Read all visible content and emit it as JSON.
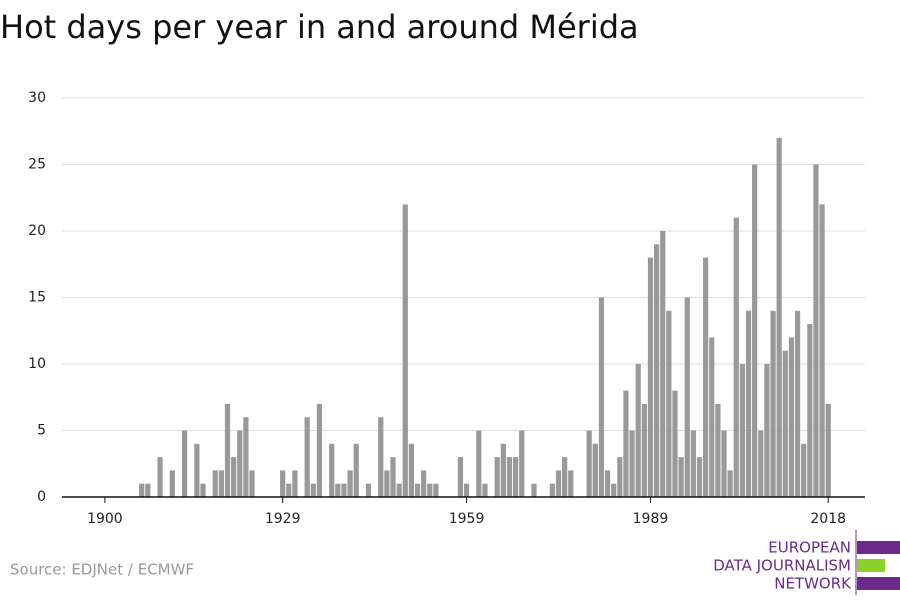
{
  "chart_data": {
    "type": "bar",
    "title": "Hot days per year in and around Mérida",
    "source": "Source: EDJNet / ECMWF",
    "logo": [
      "EUROPEAN",
      "DATA JOURNALISM",
      "NETWORK"
    ],
    "color": "#999999",
    "grid": true,
    "x": [
      1900,
      1901,
      1902,
      1903,
      1904,
      1905,
      1906,
      1907,
      1908,
      1909,
      1910,
      1911,
      1912,
      1913,
      1914,
      1915,
      1916,
      1917,
      1918,
      1919,
      1920,
      1921,
      1922,
      1923,
      1924,
      1925,
      1926,
      1927,
      1928,
      1929,
      1930,
      1931,
      1932,
      1933,
      1934,
      1935,
      1936,
      1937,
      1938,
      1939,
      1940,
      1941,
      1942,
      1943,
      1944,
      1945,
      1946,
      1947,
      1948,
      1949,
      1950,
      1951,
      1952,
      1953,
      1954,
      1955,
      1956,
      1957,
      1958,
      1959,
      1960,
      1961,
      1962,
      1963,
      1964,
      1965,
      1966,
      1967,
      1968,
      1969,
      1970,
      1971,
      1972,
      1973,
      1974,
      1975,
      1976,
      1977,
      1978,
      1979,
      1980,
      1981,
      1982,
      1983,
      1984,
      1985,
      1986,
      1987,
      1988,
      1989,
      1990,
      1991,
      1992,
      1993,
      1994,
      1995,
      1996,
      1997,
      1998,
      1999,
      2000,
      2001,
      2002,
      2003,
      2004,
      2005,
      2006,
      2007,
      2008,
      2009,
      2010,
      2011,
      2012,
      2013,
      2014,
      2015,
      2016,
      2017,
      2018
    ],
    "values": [
      0,
      0,
      0,
      0,
      0,
      0,
      1,
      1,
      0,
      3,
      0,
      2,
      0,
      5,
      0,
      4,
      1,
      0,
      2,
      2,
      7,
      3,
      5,
      6,
      2,
      0,
      0,
      0,
      0,
      2,
      1,
      2,
      0,
      6,
      1,
      7,
      0,
      4,
      1,
      1,
      2,
      4,
      0,
      1,
      0,
      6,
      2,
      3,
      1,
      22,
      4,
      1,
      2,
      1,
      1,
      0,
      0,
      0,
      3,
      1,
      0,
      5,
      1,
      0,
      3,
      4,
      3,
      3,
      5,
      0,
      1,
      0,
      0,
      1,
      2,
      3,
      2,
      0,
      0,
      5,
      4,
      15,
      2,
      1,
      3,
      8,
      5,
      10,
      7,
      18,
      19,
      20,
      14,
      8,
      3,
      15,
      5,
      3,
      18,
      12,
      7,
      5,
      2,
      21,
      10,
      14,
      25,
      5,
      10,
      14,
      27,
      11,
      12,
      14,
      4,
      13,
      25,
      22,
      7
    ],
    "xlim": [
      1893,
      2024
    ],
    "xticks": [
      1900,
      1929,
      1959,
      1989,
      2018
    ],
    "ylim": [
      0,
      30
    ],
    "yticks": [
      0,
      5,
      10,
      15,
      20,
      25,
      30
    ]
  }
}
